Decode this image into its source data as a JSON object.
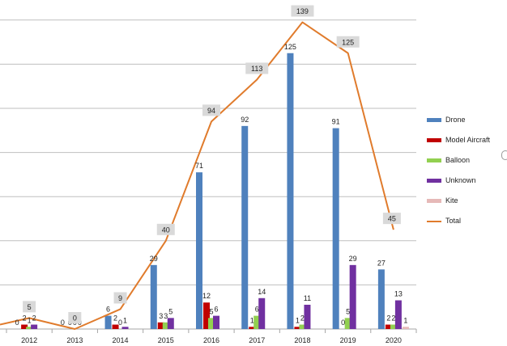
{
  "chart_data": {
    "type": "bar",
    "categories": [
      "2012",
      "2013",
      "2014",
      "2015",
      "2016",
      "2017",
      "2018",
      "2019",
      "2020"
    ],
    "series": [
      {
        "name": "Drone",
        "color": "#4f81bd",
        "values": [
          0,
          0,
          6,
          29,
          71,
          92,
          125,
          91,
          27
        ]
      },
      {
        "name": "Model Aircraft",
        "color": "#c00000",
        "values": [
          2,
          0,
          2,
          3,
          12,
          1,
          1,
          0,
          2
        ]
      },
      {
        "name": "Balloon",
        "color": "#92d050",
        "values": [
          1,
          0,
          0,
          3,
          5,
          6,
          2,
          5,
          2
        ]
      },
      {
        "name": "Unknown",
        "color": "#7030a0",
        "values": [
          2,
          0,
          1,
          5,
          6,
          14,
          11,
          29,
          13
        ]
      },
      {
        "name": "Kite",
        "color": "#e6b9b8",
        "values": [
          0,
          0,
          0,
          0,
          0,
          0,
          0,
          0,
          1
        ]
      }
    ],
    "line_series": {
      "name": "Total",
      "color": "#e07b2c",
      "values": [
        5,
        0,
        9,
        40,
        94,
        113,
        139,
        125,
        45
      ]
    },
    "bar_labels": [
      [
        "0",
        "2",
        "1",
        "2",
        ""
      ],
      [
        "0",
        "0",
        "0",
        "0",
        ""
      ],
      [
        "6",
        "2",
        "0",
        "1",
        ""
      ],
      [
        "29",
        "3",
        "3",
        "5",
        ""
      ],
      [
        "71",
        "12",
        "5",
        "6",
        ""
      ],
      [
        "92",
        "1",
        "6",
        "14",
        ""
      ],
      [
        "125",
        "1",
        "2",
        "11",
        ""
      ],
      [
        "91",
        "0",
        "5",
        "29",
        ""
      ],
      [
        "27",
        "2",
        "2",
        "13",
        "1"
      ]
    ],
    "ylim": [
      0,
      145
    ],
    "y_gridlines": [
      0,
      20,
      40,
      60,
      80,
      100,
      120,
      140
    ],
    "grid": true,
    "legend_position": "right"
  }
}
